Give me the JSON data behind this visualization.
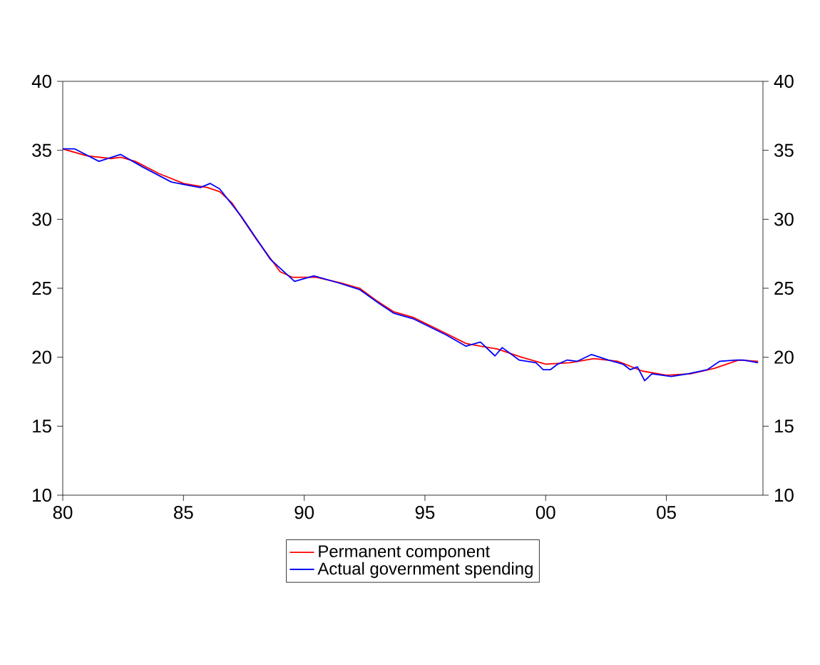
{
  "chart_data": {
    "type": "line",
    "xlim": [
      1980,
      2009
    ],
    "xticks": [
      {
        "value": 1980,
        "label": "80"
      },
      {
        "value": 1985,
        "label": "85"
      },
      {
        "value": 1990,
        "label": "90"
      },
      {
        "value": 1995,
        "label": "95"
      },
      {
        "value": 2000,
        "label": "00"
      },
      {
        "value": 2005,
        "label": "05"
      }
    ],
    "ylim": [
      10,
      40
    ],
    "yticks": [
      10,
      15,
      20,
      25,
      30,
      35,
      40
    ],
    "y2lim": [
      10,
      40
    ],
    "y2ticks": [
      10,
      15,
      20,
      25,
      30,
      35,
      40
    ],
    "grid": false,
    "legend": "bottom",
    "series": [
      {
        "name": "Permanent component",
        "color": "#ff0000",
        "x": [
          1980,
          1981,
          1982,
          1982.4,
          1983,
          1984,
          1985,
          1986,
          1986.5,
          1987,
          1988,
          1989,
          1989.5,
          1990.5,
          1991.5,
          1992.3,
          1993,
          1993.7,
          1994.5,
          1995.9,
          1996.7,
          1997.3,
          1998,
          1999,
          2000,
          2001,
          2002,
          2003,
          2004,
          2005,
          2006,
          2007,
          2007.5,
          2008,
          2008.8
        ],
        "values": [
          35.1,
          34.6,
          34.4,
          34.5,
          34.2,
          33.3,
          32.6,
          32.3,
          32.0,
          31.2,
          28.6,
          26.2,
          25.8,
          25.8,
          25.4,
          25.0,
          24.1,
          23.3,
          22.9,
          21.7,
          21.0,
          20.8,
          20.6,
          20.0,
          19.5,
          19.6,
          19.9,
          19.7,
          19.0,
          18.7,
          18.8,
          19.2,
          19.5,
          19.8,
          19.7
        ]
      },
      {
        "name": "Actual government spending",
        "color": "#0000ff",
        "x": [
          1980,
          1980.5,
          1981.5,
          1982.4,
          1983.3,
          1984.5,
          1985.7,
          1986.1,
          1986.5,
          1987.4,
          1988.6,
          1989.6,
          1990.4,
          1991.4,
          1992.3,
          1993.1,
          1993.7,
          1994.5,
          1995.9,
          1996.7,
          1997.3,
          1997.9,
          1998.2,
          1998.9,
          1999.6,
          1999.9,
          2000.2,
          2000.5,
          2000.9,
          2001.3,
          2001.9,
          2002.6,
          2003.2,
          2003.5,
          2003.8,
          2004.1,
          2004.4,
          2005.2,
          2005.9,
          2006.7,
          2007.2,
          2007.9,
          2008.2,
          2008.8
        ],
        "values": [
          35.1,
          35.1,
          34.2,
          34.7,
          33.8,
          32.7,
          32.3,
          32.6,
          32.2,
          30.2,
          27.1,
          25.5,
          25.9,
          25.4,
          24.9,
          23.9,
          23.2,
          22.8,
          21.6,
          20.8,
          21.1,
          20.1,
          20.7,
          19.8,
          19.6,
          19.1,
          19.1,
          19.5,
          19.8,
          19.7,
          20.2,
          19.8,
          19.5,
          19.1,
          19.3,
          18.3,
          18.8,
          18.6,
          18.8,
          19.1,
          19.7,
          19.8,
          19.8,
          19.6
        ]
      }
    ]
  }
}
